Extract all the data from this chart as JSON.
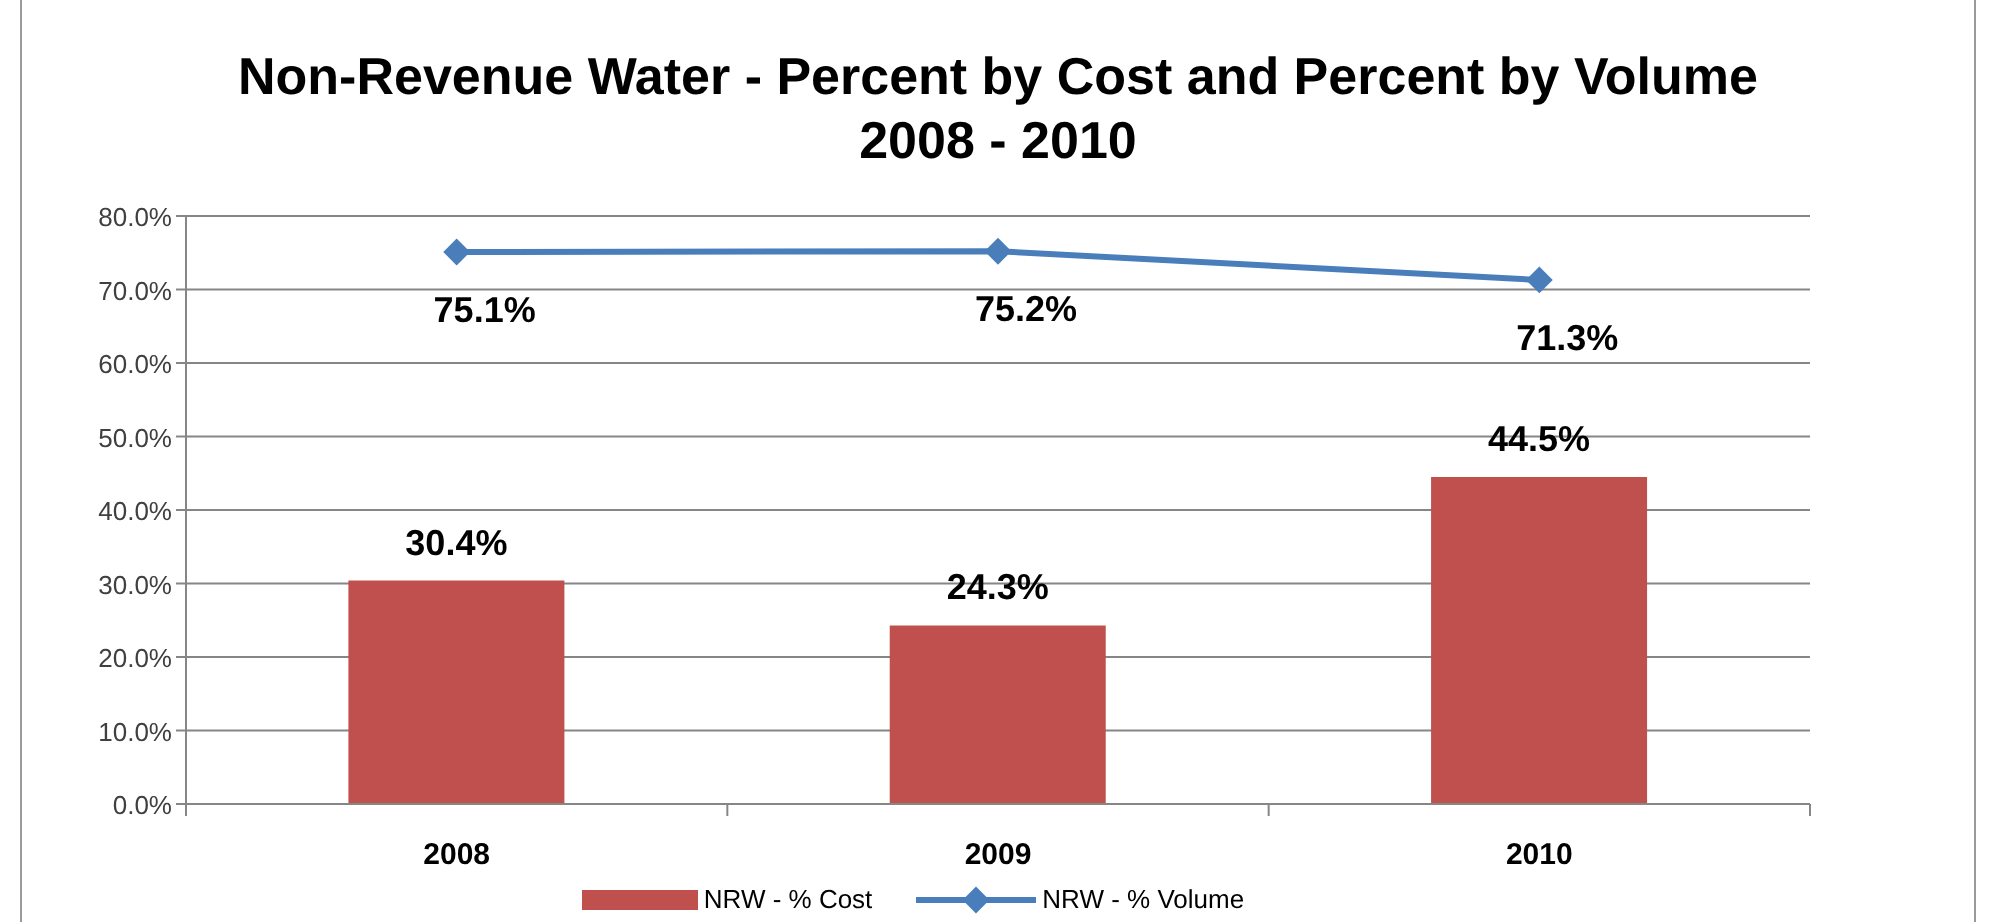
{
  "chart_data": {
    "type": "bar",
    "title": "Non-Revenue Water - Percent by Cost and Percent by Volume\n2008 - 2010",
    "categories": [
      "2008",
      "2009",
      "2010"
    ],
    "series": [
      {
        "name": "NRW - % Cost",
        "color": "#c0504d",
        "values": [
          30.4,
          24.3,
          44.5
        ],
        "value_labels": [
          "30.4%",
          "24.3%",
          "44.5%"
        ]
      },
      {
        "name": "NRW - % Volume",
        "type": "line",
        "color": "#4a7ebb",
        "values": [
          75.1,
          75.2,
          71.3
        ],
        "value_labels": [
          "75.1%",
          "75.2%",
          "71.3%"
        ],
        "marker": "diamond",
        "line_style": "solid"
      }
    ],
    "ylim": [
      0,
      80
    ],
    "yticks": [
      {
        "value": 0,
        "label": "0.0%"
      },
      {
        "value": 10,
        "label": "10.0%"
      },
      {
        "value": 20,
        "label": "20.0%"
      },
      {
        "value": 30,
        "label": "30.0%"
      },
      {
        "value": 40,
        "label": "40.0%"
      },
      {
        "value": 50,
        "label": "50.0%"
      },
      {
        "value": 60,
        "label": "60.0%"
      },
      {
        "value": 70,
        "label": "70.0%"
      },
      {
        "value": 80,
        "label": "80.0%"
      }
    ],
    "grid": "y",
    "legend": "bottom"
  }
}
